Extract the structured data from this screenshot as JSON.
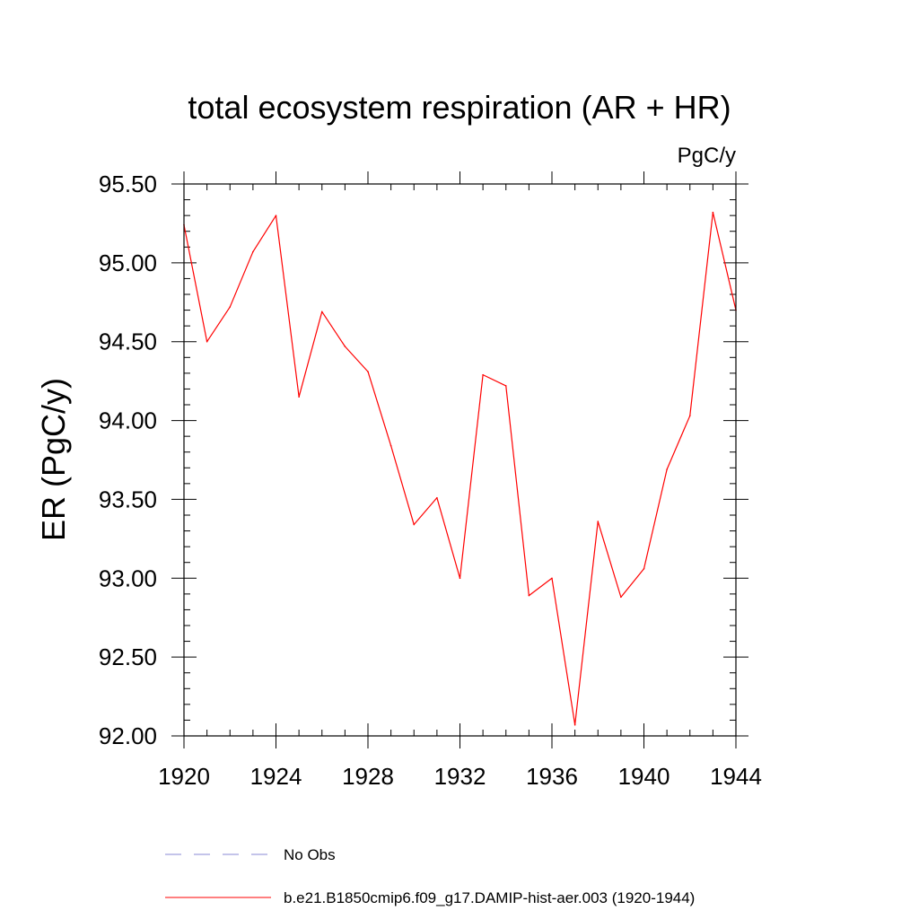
{
  "chart_data": {
    "type": "line",
    "title": "total ecosystem respiration (AR + HR)",
    "units_label": "PgC/y",
    "ylabel": "ER  (PgC/y)",
    "xlabel": "",
    "xlim": [
      1920,
      1944
    ],
    "ylim": [
      92.0,
      95.5
    ],
    "x_ticks": [
      "1920",
      "1924",
      "1928",
      "1932",
      "1936",
      "1940",
      "1944"
    ],
    "y_ticks": [
      "92.00",
      "92.50",
      "93.00",
      "93.50",
      "94.00",
      "94.50",
      "95.00",
      "95.50"
    ],
    "grid": false,
    "legend_position": "bottom",
    "series": [
      {
        "name": "b.e21.B1850cmip6.f09_g17.DAMIP-hist-aer.003 (1920-1944)",
        "color": "#ff0000",
        "x": [
          1920,
          1921,
          1922,
          1923,
          1924,
          1925,
          1926,
          1927,
          1928,
          1929,
          1930,
          1931,
          1932,
          1933,
          1934,
          1935,
          1936,
          1937,
          1938,
          1939,
          1940,
          1941,
          1942,
          1943,
          1944
        ],
        "y": [
          95.24,
          94.5,
          94.72,
          95.07,
          95.3,
          94.15,
          94.69,
          94.47,
          94.31,
          93.84,
          93.34,
          93.51,
          93.0,
          94.29,
          94.22,
          92.89,
          93.0,
          92.07,
          93.36,
          92.88,
          93.06,
          93.69,
          94.03,
          95.32,
          94.7
        ]
      }
    ],
    "legend": [
      {
        "label": "No Obs",
        "color": "#8a8ad6",
        "style": "dashed"
      },
      {
        "label": "b.e21.B1850cmip6.f09_g17.DAMIP-hist-aer.003 (1920-1944)",
        "color": "#ff0000",
        "style": "solid"
      }
    ]
  }
}
